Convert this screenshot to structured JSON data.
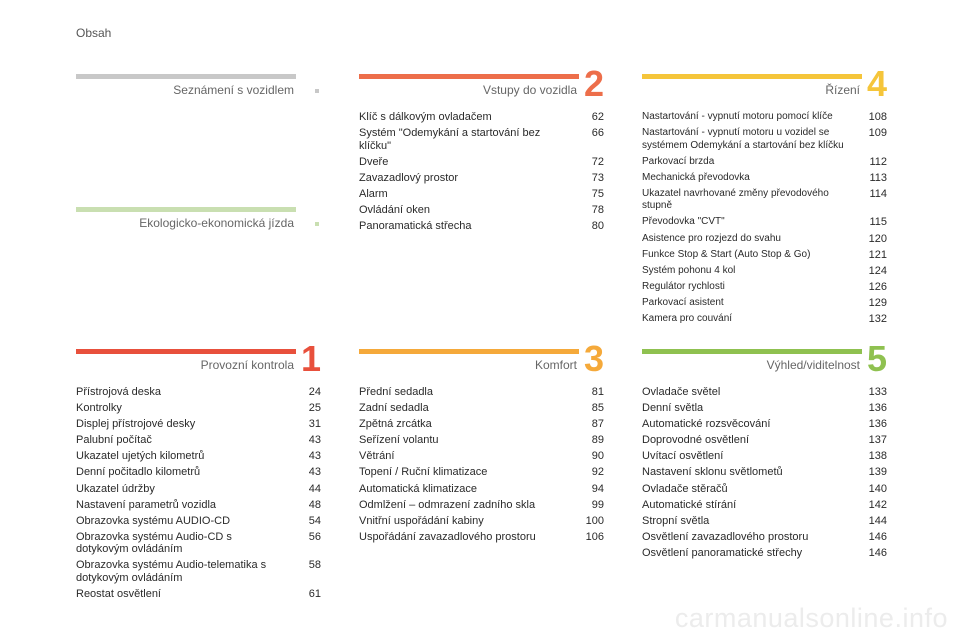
{
  "page_label": "Obsah",
  "watermark": "carmanualsonline.info",
  "sections": [
    {
      "title": "Seznámení s vozidlem",
      "number": "",
      "color": "#c8c8c8",
      "items": []
    },
    {
      "title": "Vstupy do vozidla",
      "number": "2",
      "color": "#ed6e4a",
      "items": [
        {
          "text": "Klíč s dálkovým ovladačem",
          "page": "62"
        },
        {
          "text": "Systém \"Odemykání a startování bez klíčku\"",
          "page": "66"
        },
        {
          "text": "Dveře",
          "page": "72"
        },
        {
          "text": "Zavazadlový prostor",
          "page": "73"
        },
        {
          "text": "Alarm",
          "page": "75"
        },
        {
          "text": "Ovládání oken",
          "page": "78"
        },
        {
          "text": "Panoramatická střecha",
          "page": "80"
        }
      ]
    },
    {
      "title": "Řízení",
      "number": "4",
      "color": "#f5c53a",
      "items": [
        {
          "text": "Nastartování - vypnutí motoru pomocí klíče",
          "page": "108"
        },
        {
          "text": "Nastartování - vypnutí motoru u vozidel se systémem Odemykání a startování bez klíčku",
          "page": "109"
        },
        {
          "text": "Parkovací brzda",
          "page": "112"
        },
        {
          "text": "Mechanická převodovka",
          "page": "113"
        },
        {
          "text": "Ukazatel navrhované změny převodového stupně",
          "page": "114"
        },
        {
          "text": "Převodovka \"CVT\"",
          "page": "115"
        },
        {
          "text": "Asistence pro rozjezd do svahu",
          "page": "120"
        },
        {
          "text": "Funkce Stop & Start (Auto Stop & Go)",
          "page": "121"
        },
        {
          "text": "Systém pohonu 4 kol",
          "page": "124"
        },
        {
          "text": "Regulátor rychlosti",
          "page": "126"
        },
        {
          "text": "Parkovací asistent",
          "page": "129"
        },
        {
          "text": "Kamera pro couvání",
          "page": "132"
        }
      ]
    },
    {
      "title": "Ekologicko-ekonomická jízda",
      "number": "",
      "color": "#c9dfb1",
      "items": []
    },
    {
      "title": "Provozní kontrola",
      "number": "1",
      "color": "#e8503c",
      "items": [
        {
          "text": "Přístrojová deska",
          "page": "24"
        },
        {
          "text": "Kontrolky",
          "page": "25"
        },
        {
          "text": "Displej přístrojové desky",
          "page": "31"
        },
        {
          "text": "Palubní počítač",
          "page": "43"
        },
        {
          "text": "Ukazatel ujetých kilometrů",
          "page": "43"
        },
        {
          "text": "Denní počitadlo kilometrů",
          "page": "43"
        },
        {
          "text": "Ukazatel údržby",
          "page": "44"
        },
        {
          "text": "Nastavení parametrů vozidla",
          "page": "48"
        },
        {
          "text": "Obrazovka systému AUDIO-CD",
          "page": "54"
        },
        {
          "text": "Obrazovka systému Audio-CD s dotykovým ovládáním",
          "page": "56"
        },
        {
          "text": "Obrazovka systému Audio-telematika s dotykovým ovládáním",
          "page": "58"
        },
        {
          "text": "Reostat osvětlení",
          "page": "61"
        }
      ]
    },
    {
      "title": "Komfort",
      "number": "3",
      "color": "#f5a93a",
      "items": [
        {
          "text": "Přední sedadla",
          "page": "81"
        },
        {
          "text": "Zadní sedadla",
          "page": "85"
        },
        {
          "text": "Zpětná zrcátka",
          "page": "87"
        },
        {
          "text": "Seřízení volantu",
          "page": "89"
        },
        {
          "text": "Větrání",
          "page": "90"
        },
        {
          "text": "Topení / Ruční klimatizace",
          "page": "92"
        },
        {
          "text": "Automatická klimatizace",
          "page": "94"
        },
        {
          "text": "Odmlžení – odmrazení zadního skla",
          "page": "99"
        },
        {
          "text": "Vnitřní uspořádání kabiny",
          "page": "100"
        },
        {
          "text": "Uspořádání zavazadlového prostoru",
          "page": "106"
        }
      ]
    },
    {
      "title": "Výhled/viditelnost",
      "number": "5",
      "color": "#8fc150",
      "items": [
        {
          "text": "Ovladače světel",
          "page": "133"
        },
        {
          "text": "Denní světla",
          "page": "136"
        },
        {
          "text": "Automatické rozsvěcování",
          "page": "136"
        },
        {
          "text": "Doprovodné osvětlení",
          "page": "137"
        },
        {
          "text": "Uvítací osvětlení",
          "page": "138"
        },
        {
          "text": "Nastavení sklonu světlometů",
          "page": "139"
        },
        {
          "text": "Ovladače stěračů",
          "page": "140"
        },
        {
          "text": "Automatické stírání",
          "page": "142"
        },
        {
          "text": "Stropní světla",
          "page": "144"
        },
        {
          "text": "Osvětlení zavazadlového prostoru",
          "page": "146"
        },
        {
          "text": "Osvětlení panoramatické střechy",
          "page": "146"
        }
      ]
    }
  ]
}
